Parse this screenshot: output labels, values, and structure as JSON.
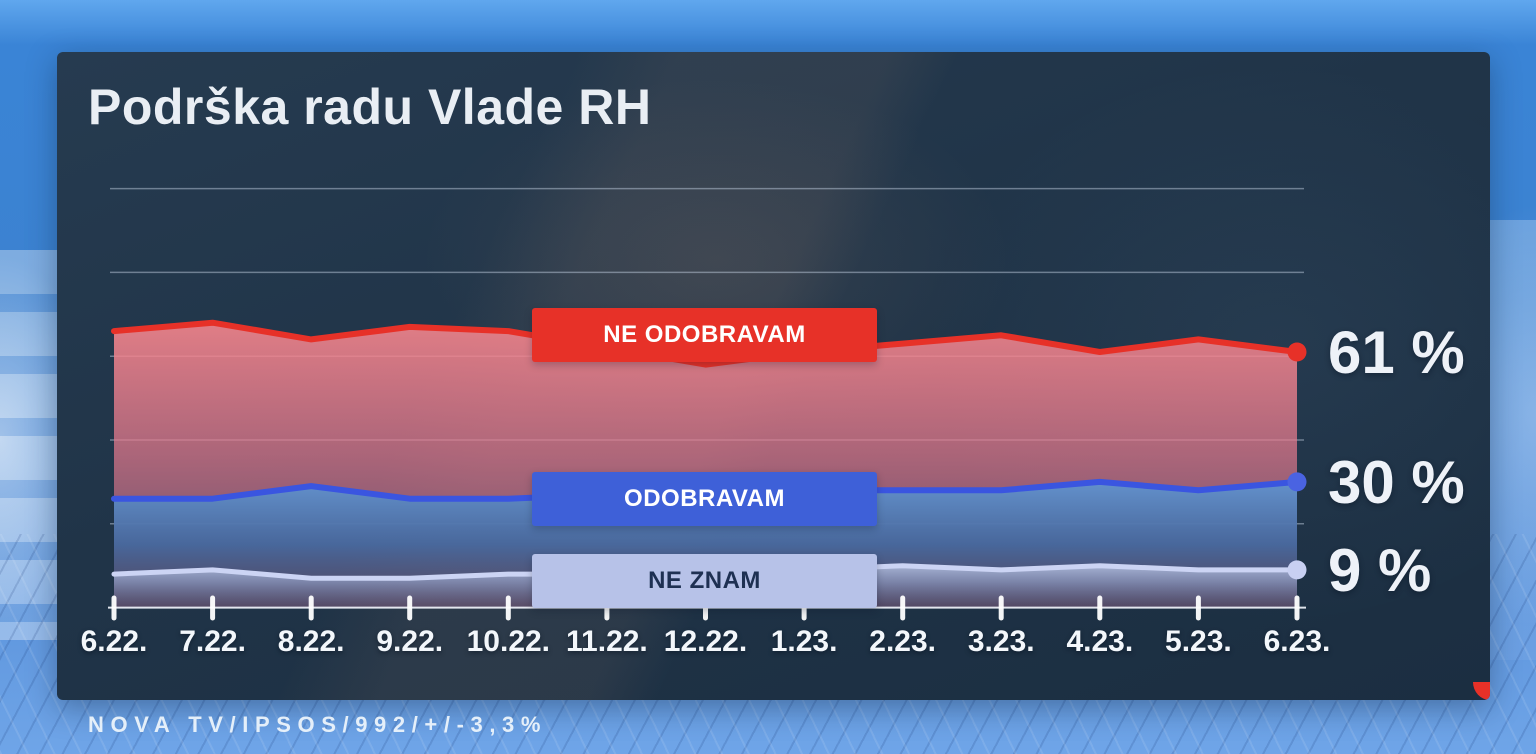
{
  "title": "Podrška radu Vlade RH",
  "source": "NOVA TV/IPSOS/992/+/-3,3%",
  "colors": {
    "accent_red": "#e73128",
    "accent_blue": "#3e60d8",
    "accent_lavender": "#b7c2e8",
    "lavender_text": "#1e3052",
    "panel_navy": "#203448",
    "background_blue": "#4487d4",
    "axis_white": "#f5f8ff"
  },
  "chart_data": {
    "type": "area",
    "title": "Podrška radu Vlade RH",
    "xlabel": "",
    "ylabel": "",
    "ylim": [
      0,
      100
    ],
    "grid_step": 20,
    "grid": "horizontal-only",
    "legend_position": "labels-on-chart",
    "categories": [
      "6.22.",
      "7.22.",
      "8.22.",
      "9.22.",
      "10.22.",
      "11.22.",
      "12.22.",
      "1.23.",
      "2.23.",
      "3.23.",
      "4.23.",
      "5.23.",
      "6.23."
    ],
    "series": [
      {
        "name": "NE ODOBRAVAM",
        "color": "#e73128",
        "end_label": "61 %",
        "values": [
          66,
          68,
          64,
          67,
          66,
          62,
          58,
          61,
          63,
          65,
          61,
          64,
          61
        ]
      },
      {
        "name": "ODOBRAVAM",
        "color": "#3e60d8",
        "end_label": "30 %",
        "values": [
          26,
          26,
          29,
          26,
          26,
          27,
          27,
          28,
          28,
          28,
          30,
          28,
          30
        ]
      },
      {
        "name": "NE ZNAM",
        "color": "#b7c2e8",
        "end_label": "9 %",
        "values": [
          8,
          9,
          7,
          7,
          8,
          8,
          8,
          9,
          10,
          9,
          10,
          9,
          9
        ]
      }
    ]
  }
}
